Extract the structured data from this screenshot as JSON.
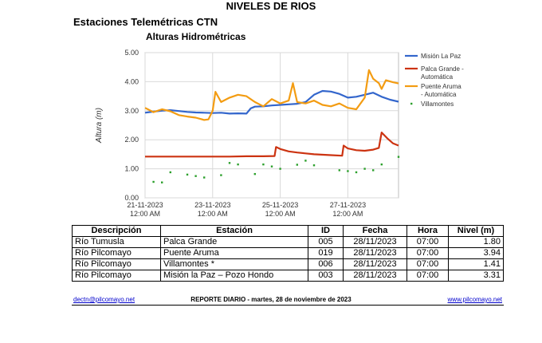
{
  "header": {
    "title": "NIVELES DE RIOS",
    "subtitle": "Estaciones Telemétricas CTN",
    "chart_title": "Alturas Hidrométricas"
  },
  "chart_data": {
    "type": "line",
    "title": "Alturas Hidrométricas",
    "xlabel": "",
    "ylabel": "Altura (m)",
    "ylim": [
      0,
      5
    ],
    "y_ticks": [
      "0.00",
      "1.00",
      "2.00",
      "3.00",
      "4.00",
      "5.00"
    ],
    "xlim": [
      "21-11-2023 00:00",
      "28-11-2023 12:00"
    ],
    "x_ticks": [
      {
        "date": "21-11-2023",
        "time": "12:00 AM"
      },
      {
        "date": "23-11-2023",
        "time": "12:00 AM"
      },
      {
        "date": "25-11-2023",
        "time": "12:00 AM"
      },
      {
        "date": "27-11-2023",
        "time": "12:00 AM"
      }
    ],
    "grid": true,
    "legend_position": "right",
    "series": [
      {
        "name": "Misión La Paz",
        "color": "#3366cc",
        "style": "line",
        "points": [
          [
            "21-11-2023 00:00",
            2.93
          ],
          [
            "21-11-2023 06:00",
            2.97
          ],
          [
            "21-11-2023 12:00",
            3.0
          ],
          [
            "21-11-2023 18:00",
            3.02
          ],
          [
            "22-11-2023 00:00",
            2.99
          ],
          [
            "22-11-2023 06:00",
            2.96
          ],
          [
            "22-11-2023 12:00",
            2.94
          ],
          [
            "22-11-2023 18:00",
            2.93
          ],
          [
            "23-11-2023 00:00",
            2.92
          ],
          [
            "23-11-2023 06:00",
            2.93
          ],
          [
            "23-11-2023 12:00",
            2.9
          ],
          [
            "23-11-2023 18:00",
            2.91
          ],
          [
            "24-11-2023 00:00",
            2.9
          ],
          [
            "24-11-2023 03:00",
            3.08
          ],
          [
            "24-11-2023 06:00",
            3.14
          ],
          [
            "24-11-2023 12:00",
            3.15
          ],
          [
            "24-11-2023 18:00",
            3.18
          ],
          [
            "25-11-2023 00:00",
            3.2
          ],
          [
            "25-11-2023 06:00",
            3.22
          ],
          [
            "25-11-2023 12:00",
            3.24
          ],
          [
            "25-11-2023 18:00",
            3.3
          ],
          [
            "26-11-2023 00:00",
            3.55
          ],
          [
            "26-11-2023 06:00",
            3.68
          ],
          [
            "26-11-2023 12:00",
            3.66
          ],
          [
            "26-11-2023 18:00",
            3.58
          ],
          [
            "27-11-2023 00:00",
            3.45
          ],
          [
            "27-11-2023 06:00",
            3.48
          ],
          [
            "27-11-2023 12:00",
            3.55
          ],
          [
            "27-11-2023 18:00",
            3.62
          ],
          [
            "28-11-2023 00:00",
            3.48
          ],
          [
            "28-11-2023 06:00",
            3.38
          ],
          [
            "28-11-2023 12:00",
            3.31
          ]
        ]
      },
      {
        "name": "Palca Grande - Automática",
        "color": "#cc3311",
        "style": "line",
        "points": [
          [
            "21-11-2023 00:00",
            1.42
          ],
          [
            "21-11-2023 12:00",
            1.42
          ],
          [
            "22-11-2023 00:00",
            1.42
          ],
          [
            "22-11-2023 12:00",
            1.42
          ],
          [
            "23-11-2023 00:00",
            1.42
          ],
          [
            "23-11-2023 12:00",
            1.42
          ],
          [
            "24-11-2023 00:00",
            1.43
          ],
          [
            "24-11-2023 12:00",
            1.43
          ],
          [
            "24-11-2023 20:00",
            1.44
          ],
          [
            "24-11-2023 21:00",
            1.75
          ],
          [
            "25-11-2023 00:00",
            1.68
          ],
          [
            "25-11-2023 06:00",
            1.6
          ],
          [
            "25-11-2023 12:00",
            1.56
          ],
          [
            "26-11-2023 00:00",
            1.5
          ],
          [
            "26-11-2023 12:00",
            1.47
          ],
          [
            "26-11-2023 20:00",
            1.45
          ],
          [
            "26-11-2023 21:00",
            1.8
          ],
          [
            "27-11-2023 00:00",
            1.7
          ],
          [
            "27-11-2023 06:00",
            1.64
          ],
          [
            "27-11-2023 12:00",
            1.62
          ],
          [
            "27-11-2023 18:00",
            1.66
          ],
          [
            "27-11-2023 22:00",
            1.72
          ],
          [
            "28-11-2023 00:00",
            2.25
          ],
          [
            "28-11-2023 04:00",
            2.05
          ],
          [
            "28-11-2023 08:00",
            1.88
          ],
          [
            "28-11-2023 12:00",
            1.8
          ]
        ]
      },
      {
        "name": "Puente Aruma - Automática",
        "color": "#f39c12",
        "style": "line",
        "points": [
          [
            "21-11-2023 00:00",
            3.1
          ],
          [
            "21-11-2023 06:00",
            2.95
          ],
          [
            "21-11-2023 12:00",
            3.05
          ],
          [
            "21-11-2023 18:00",
            2.98
          ],
          [
            "22-11-2023 00:00",
            2.85
          ],
          [
            "22-11-2023 06:00",
            2.8
          ],
          [
            "22-11-2023 12:00",
            2.76
          ],
          [
            "22-11-2023 18:00",
            2.68
          ],
          [
            "22-11-2023 21:00",
            2.7
          ],
          [
            "23-11-2023 00:00",
            3.0
          ],
          [
            "23-11-2023 02:00",
            3.65
          ],
          [
            "23-11-2023 06:00",
            3.3
          ],
          [
            "23-11-2023 12:00",
            3.45
          ],
          [
            "23-11-2023 18:00",
            3.55
          ],
          [
            "24-11-2023 00:00",
            3.5
          ],
          [
            "24-11-2023 06:00",
            3.3
          ],
          [
            "24-11-2023 12:00",
            3.15
          ],
          [
            "24-11-2023 18:00",
            3.4
          ],
          [
            "25-11-2023 00:00",
            3.25
          ],
          [
            "25-11-2023 06:00",
            3.35
          ],
          [
            "25-11-2023 09:00",
            3.95
          ],
          [
            "25-11-2023 12:00",
            3.3
          ],
          [
            "25-11-2023 18:00",
            3.25
          ],
          [
            "26-11-2023 00:00",
            3.35
          ],
          [
            "26-11-2023 06:00",
            3.2
          ],
          [
            "26-11-2023 12:00",
            3.15
          ],
          [
            "26-11-2023 18:00",
            3.25
          ],
          [
            "27-11-2023 00:00",
            3.1
          ],
          [
            "27-11-2023 06:00",
            3.05
          ],
          [
            "27-11-2023 12:00",
            3.45
          ],
          [
            "27-11-2023 15:00",
            4.4
          ],
          [
            "27-11-2023 18:00",
            4.1
          ],
          [
            "27-11-2023 22:00",
            3.95
          ],
          [
            "28-11-2023 00:00",
            3.75
          ],
          [
            "28-11-2023 03:00",
            4.05
          ],
          [
            "28-11-2023 08:00",
            3.98
          ],
          [
            "28-11-2023 12:00",
            3.94
          ]
        ]
      },
      {
        "name": "Villamontes",
        "color": "#2ca02c",
        "style": "markers",
        "points": [
          [
            "21-11-2023 06:00",
            0.55
          ],
          [
            "21-11-2023 12:00",
            0.53
          ],
          [
            "21-11-2023 18:00",
            0.88
          ],
          [
            "22-11-2023 06:00",
            0.8
          ],
          [
            "22-11-2023 12:00",
            0.75
          ],
          [
            "22-11-2023 18:00",
            0.7
          ],
          [
            "23-11-2023 06:00",
            0.78
          ],
          [
            "23-11-2023 12:00",
            1.2
          ],
          [
            "23-11-2023 18:00",
            1.15
          ],
          [
            "24-11-2023 06:00",
            0.82
          ],
          [
            "24-11-2023 12:00",
            1.15
          ],
          [
            "24-11-2023 18:00",
            1.08
          ],
          [
            "25-11-2023 00:00",
            1.0
          ],
          [
            "25-11-2023 12:00",
            1.14
          ],
          [
            "25-11-2023 18:00",
            1.28
          ],
          [
            "26-11-2023 00:00",
            1.12
          ],
          [
            "26-11-2023 18:00",
            0.95
          ],
          [
            "27-11-2023 00:00",
            0.92
          ],
          [
            "27-11-2023 06:00",
            0.88
          ],
          [
            "27-11-2023 12:00",
            1.0
          ],
          [
            "27-11-2023 18:00",
            0.95
          ],
          [
            "28-11-2023 00:00",
            1.15
          ],
          [
            "28-11-2023 12:00",
            1.41
          ]
        ]
      }
    ]
  },
  "table": {
    "headers": [
      "Descripción",
      "Estación",
      "ID",
      "Fecha",
      "Hora",
      "Nivel (m)"
    ],
    "rows": [
      [
        "Río Tumusla",
        "Palca Grande",
        "005",
        "28/11/2023",
        "07:00",
        "1.80"
      ],
      [
        "Río Pilcomayo",
        "Puente Aruma",
        "019",
        "28/11/2023",
        "07:00",
        "3.94"
      ],
      [
        "Río Pilcomayo",
        "Villamontes *",
        "006",
        "28/11/2023",
        "07:00",
        "1.41"
      ],
      [
        "Río Pilcomayo",
        "Misión la Paz – Pozo Hondo",
        "003",
        "28/11/2023",
        "07:00",
        "3.31"
      ]
    ]
  },
  "footer": {
    "email": "dectn@pilcomayo.net",
    "report": "REPORTE DIARIO - martes, 28 de noviembre de 2023",
    "website": "www.pilcomayo.net"
  }
}
